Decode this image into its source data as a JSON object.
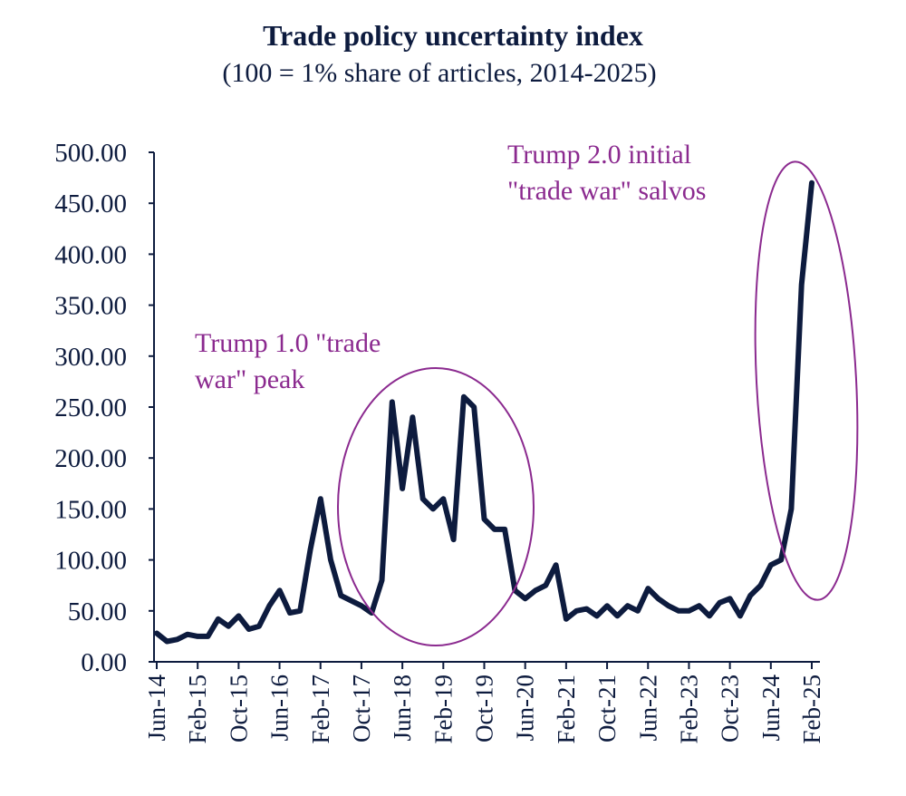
{
  "chart_data": {
    "type": "line",
    "title": "Trade policy uncertainty index",
    "subtitle": "(100 = 1% share of articles, 2014-2025)",
    "annotations": [
      {
        "lines": [
          "Trump 1.0 \"trade",
          "war\" peak"
        ]
      },
      {
        "lines": [
          "Trump 2.0 initial",
          "\"trade war\" salvos"
        ]
      }
    ],
    "categories": [
      "Jun-14",
      null,
      null,
      null,
      "Feb-15",
      null,
      null,
      null,
      "Oct-15",
      null,
      null,
      null,
      "Jun-16",
      null,
      null,
      null,
      "Feb-17",
      null,
      null,
      null,
      "Oct-17",
      null,
      null,
      null,
      "Jun-18",
      null,
      null,
      null,
      "Feb-19",
      null,
      null,
      null,
      "Oct-19",
      null,
      null,
      null,
      "Jun-20",
      null,
      null,
      null,
      "Feb-21",
      null,
      null,
      null,
      "Oct-21",
      null,
      null,
      null,
      "Jun-22",
      null,
      null,
      null,
      "Feb-23",
      null,
      null,
      null,
      "Oct-23",
      null,
      null,
      null,
      "Jun-24",
      null,
      null,
      null,
      "Feb-25"
    ],
    "series": [
      {
        "color": "#0d1b3e",
        "values": [
          28,
          20,
          22,
          27,
          25,
          25,
          42,
          35,
          45,
          32,
          35,
          55,
          70,
          48,
          50,
          110,
          160,
          100,
          65,
          60,
          55,
          48,
          80,
          255,
          170,
          240,
          160,
          150,
          160,
          120,
          260,
          250,
          140,
          130,
          130,
          70,
          62,
          70,
          75,
          95,
          42,
          50,
          52,
          45,
          55,
          45,
          55,
          50,
          72,
          62,
          55,
          50,
          50,
          55,
          45,
          58,
          62,
          45,
          65,
          75,
          95,
          100,
          150,
          370,
          470
        ]
      }
    ],
    "ylim": [
      0,
      500
    ],
    "yticks": [
      {
        "value": 0,
        "label": "0.00"
      },
      {
        "value": 50,
        "label": "50.00"
      },
      {
        "value": 100,
        "label": "100.00"
      },
      {
        "value": 150,
        "label": "150.00"
      },
      {
        "value": 200,
        "label": "200.00"
      },
      {
        "value": 250,
        "label": "250.00"
      },
      {
        "value": 300,
        "label": "300.00"
      },
      {
        "value": 350,
        "label": "350.00"
      },
      {
        "value": 400,
        "label": "400.00"
      },
      {
        "value": 450,
        "label": "450.00"
      },
      {
        "value": 500,
        "label": "500.00"
      }
    ],
    "annotation_color": "#8b2a8f"
  }
}
